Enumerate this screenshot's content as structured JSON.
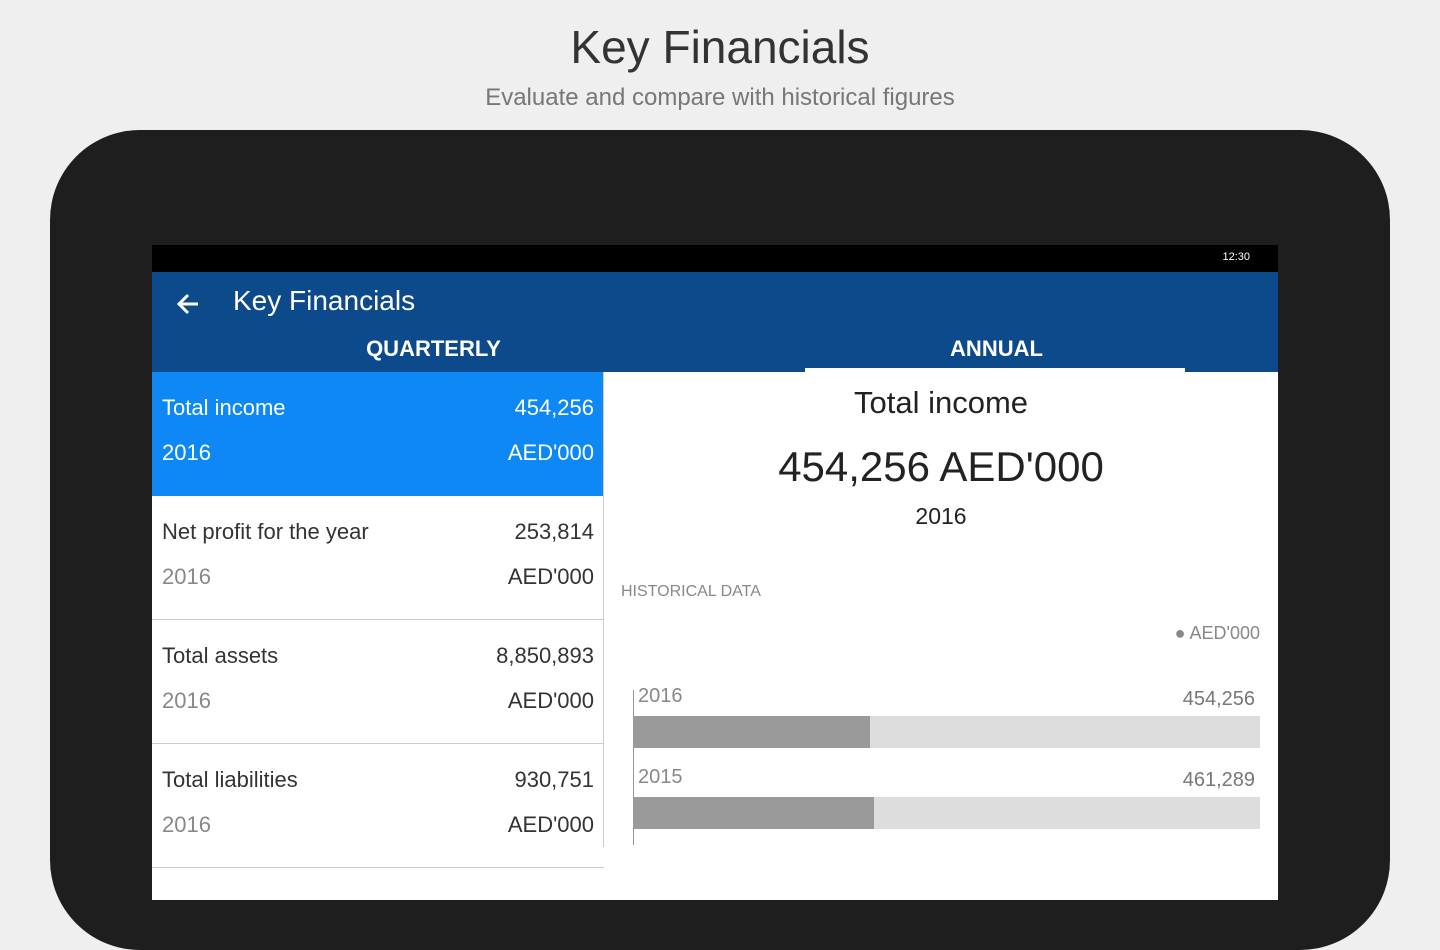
{
  "header": {
    "title": "Key Financials",
    "subtitle": "Evaluate and compare with historical figures"
  },
  "status_bar": {
    "time": "12:30"
  },
  "app_bar": {
    "title": "Key Financials",
    "tabs": [
      "QUARTERLY",
      "ANNUAL"
    ]
  },
  "list": {
    "items": [
      {
        "label": "Total income",
        "value": "454,256",
        "year": "2016",
        "unit": "AED'000"
      },
      {
        "label": "Net profit for the year",
        "value": "253,814",
        "year": "2016",
        "unit": "AED'000"
      },
      {
        "label": "Total assets",
        "value": "8,850,893",
        "year": "2016",
        "unit": "AED'000"
      },
      {
        "label": "Total liabilities",
        "value": "930,751",
        "year": "2016",
        "unit": "AED'000"
      }
    ]
  },
  "detail": {
    "title": "Total income",
    "value": "454,256 AED'000",
    "year": "2016",
    "historical": {
      "title": "HISTORICAL DATA",
      "legend": "AED'000",
      "rows": [
        {
          "year": "2016",
          "value": 454256,
          "value_label": "454,256"
        },
        {
          "year": "2015",
          "value": 461289,
          "value_label": "461,289"
        }
      ]
    }
  }
}
